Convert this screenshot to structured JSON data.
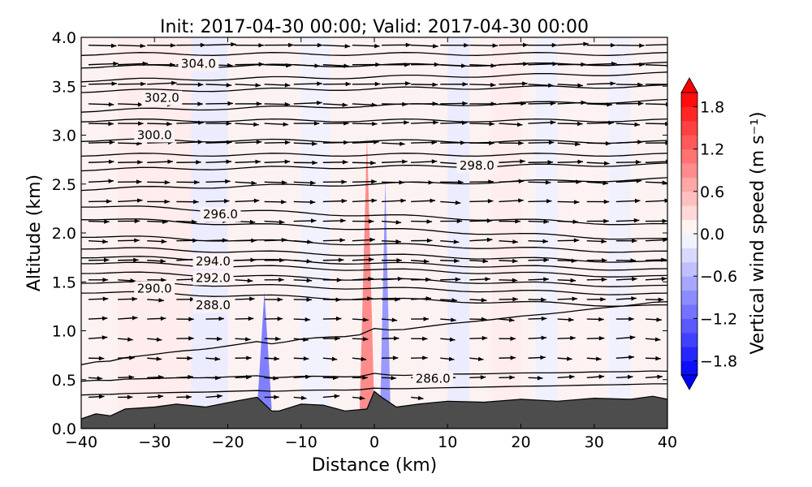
{
  "chart_data": {
    "type": "contour",
    "title": "Init: 2017-04-30 00:00; Valid: 2017-04-30 00:00",
    "xlabel": "Distance (km)",
    "ylabel": "Altitude (km)",
    "xlim": [
      -40,
      40
    ],
    "ylim": [
      0.0,
      4.0
    ],
    "x_ticks": [
      "−40",
      "−30",
      "−20",
      "−10",
      "0",
      "10",
      "20",
      "30",
      "40"
    ],
    "y_ticks": [
      "0.0",
      "0.5",
      "1.0",
      "1.5",
      "2.0",
      "2.5",
      "3.0",
      "3.5",
      "4.0"
    ],
    "grid": false,
    "colorbar": {
      "label": "Vertical wind speed (m s⁻¹)",
      "range": [
        -2.0,
        2.0
      ],
      "ticks": [
        "1.8",
        "1.2",
        "0.6",
        "0.0",
        "−0.6",
        "−1.2",
        "−1.8"
      ],
      "low_color": "#0000ff",
      "mid_color": "#ffffff",
      "high_color": "#ff0000"
    },
    "contour_labels": [
      {
        "text": "304.0",
        "x": -24,
        "y": 3.73
      },
      {
        "text": "302.0",
        "x": -29,
        "y": 3.38
      },
      {
        "text": "300.0",
        "x": -30,
        "y": 3.0
      },
      {
        "text": "298.0",
        "x": 14,
        "y": 2.69
      },
      {
        "text": "296.0",
        "x": -21,
        "y": 2.19
      },
      {
        "text": "294.0",
        "x": -22,
        "y": 1.71
      },
      {
        "text": "292.0",
        "x": -22,
        "y": 1.54
      },
      {
        "text": "290.0",
        "x": -30,
        "y": 1.43
      },
      {
        "text": "288.0",
        "x": -22,
        "y": 1.26
      },
      {
        "text": "286.0",
        "x": 8,
        "y": 0.51
      }
    ],
    "isentropes_km": [
      {
        "left": 3.83,
        "right": 3.83
      },
      {
        "left": 3.7,
        "right": 3.73
      },
      {
        "left": 3.56,
        "right": 3.63
      },
      {
        "left": 3.45,
        "right": 3.5
      },
      {
        "left": 3.25,
        "right": 3.35
      },
      {
        "left": 3.15,
        "right": 3.15
      },
      {
        "left": 2.95,
        "right": 2.93
      },
      {
        "left": 2.8,
        "right": 2.8
      },
      {
        "left": 2.65,
        "right": 2.7
      },
      {
        "left": 2.45,
        "right": 2.55
      },
      {
        "left": 2.28,
        "right": 2.08
      },
      {
        "left": 2.15,
        "right": 1.93
      },
      {
        "left": 1.97,
        "right": 1.8
      },
      {
        "left": 1.85,
        "right": 1.7
      },
      {
        "left": 1.76,
        "right": 1.62
      },
      {
        "left": 1.7,
        "right": 1.55
      },
      {
        "left": 1.6,
        "right": 1.45
      },
      {
        "left": 1.5,
        "right": 1.37
      },
      {
        "left": 1.4,
        "right": 1.25
      }
    ],
    "terrain": [
      {
        "x": -40,
        "z": 0.1
      },
      {
        "x": -38,
        "z": 0.15
      },
      {
        "x": -36,
        "z": 0.13
      },
      {
        "x": -34,
        "z": 0.2
      },
      {
        "x": -30,
        "z": 0.22
      },
      {
        "x": -27,
        "z": 0.25
      },
      {
        "x": -23,
        "z": 0.22
      },
      {
        "x": -19,
        "z": 0.28
      },
      {
        "x": -16,
        "z": 0.32
      },
      {
        "x": -14,
        "z": 0.18
      },
      {
        "x": -13,
        "z": 0.18
      },
      {
        "x": -10,
        "z": 0.25
      },
      {
        "x": -7,
        "z": 0.24
      },
      {
        "x": -4,
        "z": 0.18
      },
      {
        "x": -1,
        "z": 0.2
      },
      {
        "x": 0,
        "z": 0.38
      },
      {
        "x": 1,
        "z": 0.32
      },
      {
        "x": 3,
        "z": 0.22
      },
      {
        "x": 6,
        "z": 0.25
      },
      {
        "x": 10,
        "z": 0.28
      },
      {
        "x": 15,
        "z": 0.27
      },
      {
        "x": 20,
        "z": 0.3
      },
      {
        "x": 25,
        "z": 0.28
      },
      {
        "x": 30,
        "z": 0.31
      },
      {
        "x": 35,
        "z": 0.3
      },
      {
        "x": 38,
        "z": 0.33
      },
      {
        "x": 40,
        "z": 0.3
      }
    ],
    "wind_anomalies": [
      {
        "x0": -35,
        "x1": -25,
        "w": 0.15
      },
      {
        "x0": -25,
        "x1": -20,
        "w": -0.15
      },
      {
        "x0": -16,
        "x1": -14,
        "w": -1.0,
        "top": 1.4
      },
      {
        "x0": -10,
        "x1": -6,
        "w": -0.1
      },
      {
        "x0": -2,
        "x1": 0,
        "w": 0.9,
        "top": 3.0
      },
      {
        "x0": 0.8,
        "x1": 2.2,
        "w": -0.8,
        "top": 2.55
      },
      {
        "x0": 10,
        "x1": 13,
        "w": -0.15
      },
      {
        "x0": 16,
        "x1": 20,
        "w": 0.15
      },
      {
        "x0": 22,
        "x1": 25,
        "w": -0.12
      },
      {
        "x0": 27,
        "x1": 30,
        "w": 0.1
      },
      {
        "x0": 32,
        "x1": 35,
        "w": -0.12
      }
    ]
  }
}
